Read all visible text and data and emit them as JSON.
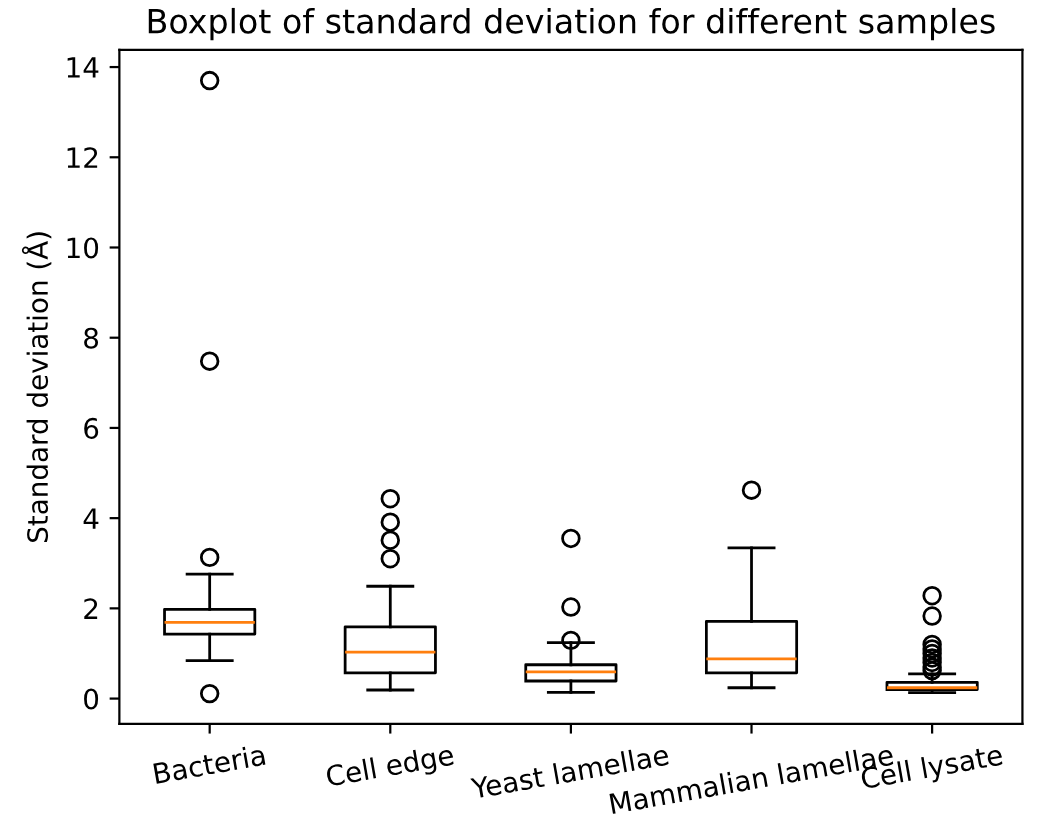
{
  "chart_data": {
    "type": "box",
    "title": "Boxplot of standard deviation for different samples",
    "ylabel": "Standard deviation (Å)",
    "categories": [
      "Bacteria",
      "Cell edge",
      "Yeast lamellae",
      "Mammalian lamellae",
      "Cell lysate"
    ],
    "boxes": [
      {
        "low": 0.84,
        "q1": 1.43,
        "median": 1.69,
        "q3": 1.98,
        "high": 2.76,
        "outliers": [
          0.11,
          3.13,
          7.48,
          13.7
        ]
      },
      {
        "low": 0.19,
        "q1": 0.57,
        "median": 1.03,
        "q3": 1.59,
        "high": 2.49,
        "outliers": [
          3.1,
          3.51,
          3.91,
          4.43
        ]
      },
      {
        "low": 0.14,
        "q1": 0.39,
        "median": 0.59,
        "q3": 0.75,
        "high": 1.24,
        "outliers": [
          1.29,
          2.03,
          3.55
        ]
      },
      {
        "low": 0.24,
        "q1": 0.57,
        "median": 0.88,
        "q3": 1.71,
        "high": 3.34,
        "outliers": [
          4.62
        ]
      },
      {
        "low": 0.13,
        "q1": 0.2,
        "median": 0.24,
        "q3": 0.36,
        "high": 0.55,
        "outliers": [
          0.62,
          0.7,
          0.8,
          0.9,
          1.0,
          1.1,
          1.2,
          1.83,
          2.28
        ]
      }
    ],
    "color": "#000000",
    "ylim": [
      -0.56,
      14.38
    ],
    "yticks": [
      0,
      2,
      4,
      6,
      8,
      10,
      12,
      14
    ],
    "grid": false
  }
}
